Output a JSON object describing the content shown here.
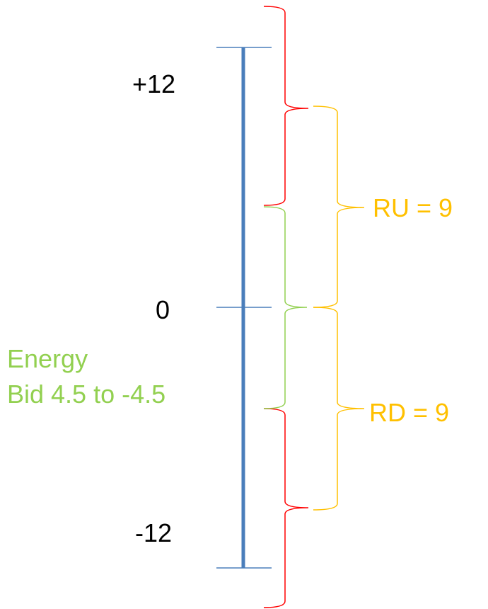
{
  "scale": {
    "top_label": "+12",
    "zero_label": "0",
    "bottom_label": "-12"
  },
  "ranges": {
    "ru_label": "RU = 9",
    "rd_label": "RD = 9",
    "energy_line1": "Energy",
    "energy_line2": "Bid 4.5 to -4.5"
  },
  "colors": {
    "axis": "#4a7ebb",
    "outer_brace": "#ff0000",
    "regulation_brace": "#ffc000",
    "energy_brace": "#92d050",
    "label_text": "#000000"
  }
}
